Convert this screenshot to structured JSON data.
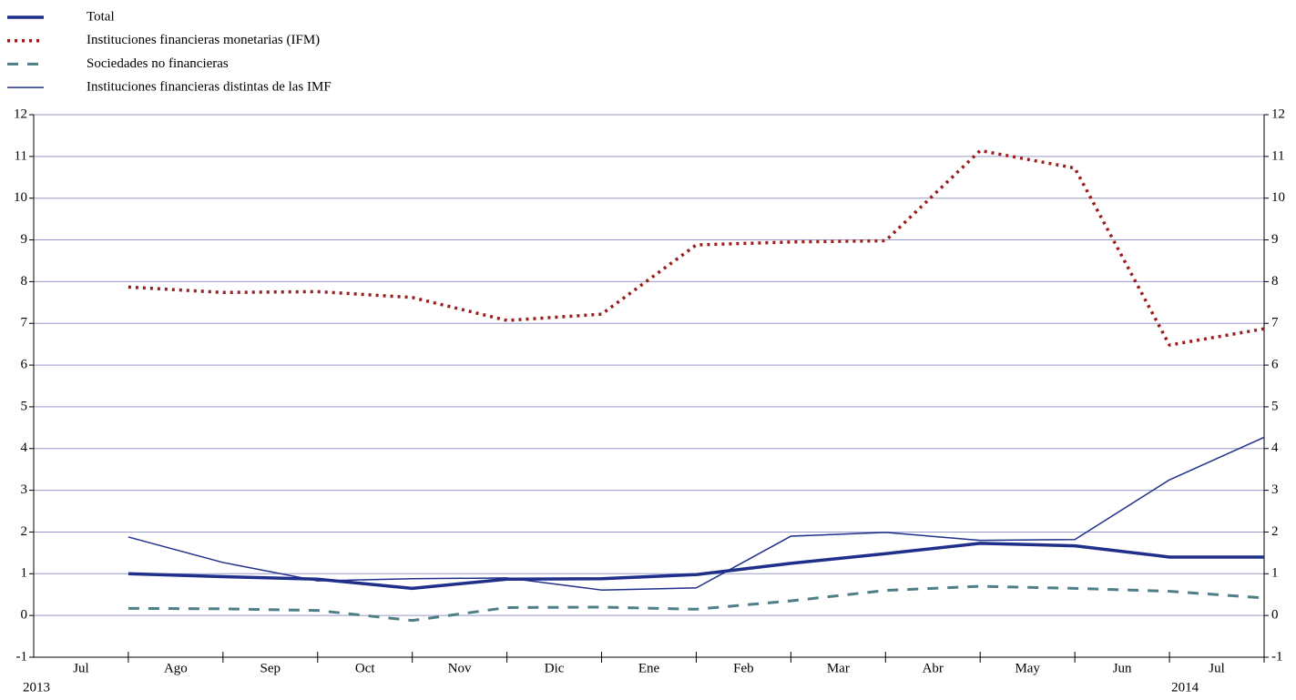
{
  "chart_data": {
    "type": "line",
    "categories": [
      "Jul",
      "Ago",
      "Sep",
      "Oct",
      "Nov",
      "Dic",
      "Ene",
      "Feb",
      "Mar",
      "Abr",
      "May",
      "Jun",
      "Jul"
    ],
    "years": [
      "2013",
      null,
      null,
      null,
      null,
      null,
      null,
      null,
      null,
      null,
      null,
      null,
      "2014"
    ],
    "series": [
      {
        "name": "Total",
        "color": "#1f2f8a",
        "style": "solid",
        "values": [
          1.0,
          0.93,
          0.87,
          0.65,
          0.87,
          0.88,
          0.98,
          1.25,
          1.48,
          1.73,
          1.67,
          1.4,
          1.4
        ]
      },
      {
        "name": "Instituciones financieras monetarias (IFM)",
        "color": "#9b1c1c",
        "style": "dotted",
        "values": [
          7.87,
          7.74,
          7.76,
          7.62,
          7.07,
          7.22,
          8.88,
          8.95,
          8.98,
          11.14,
          10.72,
          6.48,
          6.87
        ]
      },
      {
        "name": "Sociedades no financieras",
        "color": "#4f7f86",
        "style": "dashed",
        "values": [
          0.17,
          0.16,
          0.12,
          -0.12,
          0.19,
          0.2,
          0.15,
          0.35,
          0.6,
          0.7,
          0.65,
          0.58,
          0.42
        ]
      },
      {
        "name": "Instituciones financieras distintas de las IMF",
        "color": "#1f2f8a",
        "style": "solid",
        "values": [
          1.88,
          1.27,
          0.83,
          0.88,
          0.9,
          0.61,
          0.66,
          1.9,
          1.99,
          1.8,
          1.82,
          3.25,
          4.27
        ]
      }
    ],
    "ylim": [
      -1,
      12
    ],
    "yticks": [
      -1,
      0,
      1,
      2,
      3,
      4,
      5,
      6,
      7,
      8,
      9,
      10,
      11,
      12
    ],
    "y2lim": [
      -1,
      12
    ],
    "y2ticks": [
      -1,
      0,
      1,
      2,
      3,
      4,
      5,
      6,
      7,
      8,
      9,
      10,
      11,
      12
    ],
    "grid": true,
    "legend": "top-left"
  }
}
